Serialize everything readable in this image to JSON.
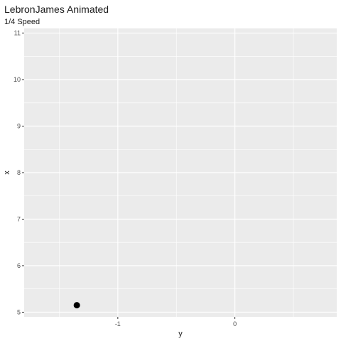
{
  "chart_data": {
    "type": "scatter",
    "title": "LebronJames Animated",
    "subtitle": "1/4 Speed",
    "xlabel": "y",
    "ylabel": "x",
    "x_ticks": [
      -1,
      0
    ],
    "y_ticks": [
      5,
      6,
      7,
      8,
      9,
      10,
      11
    ],
    "xlim": [
      -1.8,
      0.87
    ],
    "ylim": [
      4.9,
      11.1
    ],
    "grid": true,
    "panel_color": "#EBEBEB",
    "grid_color": "#FFFFFF",
    "point_color": "#000000",
    "points": [
      {
        "x": -1.35,
        "y": 5.15
      }
    ]
  }
}
